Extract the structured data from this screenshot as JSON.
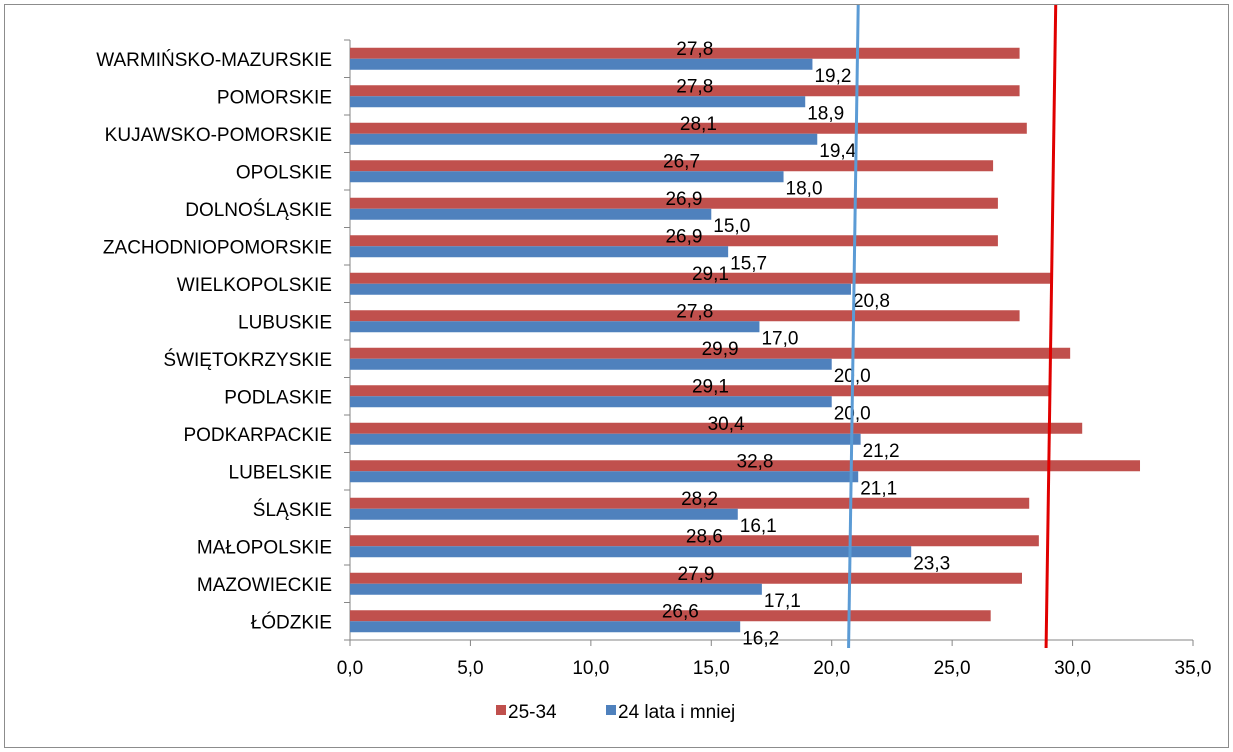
{
  "chart_data": {
    "type": "bar",
    "orientation": "horizontal",
    "categories": [
      "WARMIŃSKO-MAZURSKIE",
      "POMORSKIE",
      "KUJAWSKO-POMORSKIE",
      "OPOLSKIE",
      "DOLNOŚLĄSKIE",
      "ZACHODNIOPOMORSKIE",
      "WIELKOPOLSKIE",
      "LUBUSKIE",
      "ŚWIĘTOKRZYSKIE",
      "PODLASKIE",
      "PODKARPACKIE ",
      "LUBELSKIE",
      "ŚLĄSKIE ",
      "MAŁOPOLSKIE ",
      "MAZOWIECKIE",
      "ŁÓDZKIE"
    ],
    "series": [
      {
        "name": "25-34",
        "color": "#C0504D",
        "values": [
          27.8,
          27.8,
          28.1,
          26.7,
          26.9,
          26.9,
          29.1,
          27.8,
          29.9,
          29.1,
          30.4,
          32.8,
          28.2,
          28.6,
          27.9,
          26.6
        ],
        "labels": [
          "27,8",
          "27,8",
          "28,1",
          "26,7",
          "26,9",
          "26,9",
          "29,1",
          "27,8",
          "29,9",
          "29,1",
          "30,4",
          "32,8",
          "28,2",
          "28,6",
          "27,9",
          "26,6"
        ]
      },
      {
        "name": "24 lata i mniej",
        "color": "#4F81BD",
        "values": [
          19.2,
          18.9,
          19.4,
          18.0,
          15.0,
          15.7,
          20.8,
          17.0,
          20.0,
          20.0,
          21.2,
          21.1,
          16.1,
          23.3,
          17.1,
          16.2
        ],
        "labels": [
          "19,2",
          "18,9",
          "19,4",
          "18,0",
          "15,0",
          "15,7",
          "20,8",
          "17,0",
          "20,0",
          "20,0",
          "21,2",
          "21,1",
          "16,1",
          "23,3",
          "17,1",
          "16,2"
        ]
      }
    ],
    "xlim": [
      0,
      35
    ],
    "xticks": [
      "0,0",
      "5,0",
      "10,0",
      "15,0",
      "20,0",
      "25,0",
      "30,0",
      "35,0"
    ],
    "xtick_values": [
      0,
      5,
      10,
      15,
      20,
      25,
      30,
      35
    ],
    "reference_lines": [
      {
        "color": "#5B9BD5",
        "x_bottom": 20.7,
        "x_top": 21.1
      },
      {
        "color": "#E00000",
        "x_bottom": 28.9,
        "x_top": 29.3
      }
    ],
    "legend_position": "bottom",
    "grid": false
  }
}
